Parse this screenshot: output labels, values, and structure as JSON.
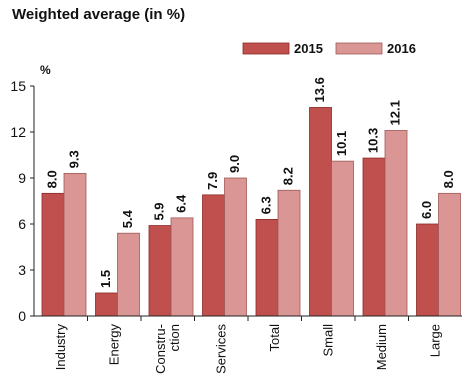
{
  "chart_data": {
    "type": "bar",
    "title": "Weighted average (in %)",
    "ylabel": "%",
    "xlabel": "",
    "ylim": [
      0,
      15
    ],
    "yticks": [
      "0",
      "3",
      "6",
      "9",
      "12",
      "15"
    ],
    "categories": [
      "Industry",
      "Energy",
      "Constru-\nction",
      "Services",
      "Total",
      "Small",
      "Medium",
      "Large"
    ],
    "series": [
      {
        "name": "2015",
        "values": [
          8.0,
          1.5,
          5.9,
          7.9,
          6.3,
          13.6,
          10.3,
          6.0
        ],
        "labels": [
          "8.0",
          "1.5",
          "5.9",
          "7.9",
          "6.3",
          "13.6",
          "10.3",
          "6.0"
        ],
        "color": "#c0504d",
        "edge": "#8c2a28"
      },
      {
        "name": "2016",
        "values": [
          9.3,
          5.4,
          6.4,
          9.0,
          8.2,
          10.1,
          12.1,
          8.0
        ],
        "labels": [
          "9.3",
          "5.4",
          "6.4",
          "9.0",
          "8.2",
          "10.1",
          "12.1",
          "8.0"
        ],
        "color": "#d99694",
        "edge": "#a05a58"
      }
    ],
    "grid": false,
    "legend_position": "top-right"
  }
}
